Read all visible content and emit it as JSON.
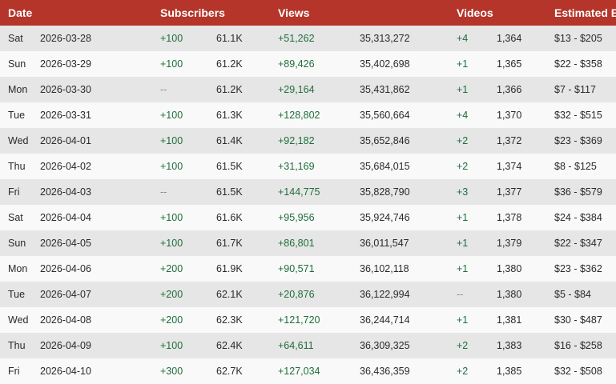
{
  "columns": {
    "date": "Date",
    "subscribers": "Subscribers",
    "views": "Views",
    "videos": "Videos",
    "earnings": "Estimated E"
  },
  "rows": [
    {
      "day": "Sat",
      "date": "2026-03-28",
      "sub_delta": "+100",
      "subs": "61.1K",
      "views_delta": "+51,262",
      "views": "35,313,272",
      "videos_delta": "+4",
      "videos": "1,364",
      "earnings": "$13 - $205"
    },
    {
      "day": "Sun",
      "date": "2026-03-29",
      "sub_delta": "+100",
      "subs": "61.2K",
      "views_delta": "+89,426",
      "views": "35,402,698",
      "videos_delta": "+1",
      "videos": "1,365",
      "earnings": "$22 - $358"
    },
    {
      "day": "Mon",
      "date": "2026-03-30",
      "sub_delta": "--",
      "subs": "61.2K",
      "views_delta": "+29,164",
      "views": "35,431,862",
      "videos_delta": "+1",
      "videos": "1,366",
      "earnings": "$7 - $117"
    },
    {
      "day": "Tue",
      "date": "2026-03-31",
      "sub_delta": "+100",
      "subs": "61.3K",
      "views_delta": "+128,802",
      "views": "35,560,664",
      "videos_delta": "+4",
      "videos": "1,370",
      "earnings": "$32 - $515"
    },
    {
      "day": "Wed",
      "date": "2026-04-01",
      "sub_delta": "+100",
      "subs": "61.4K",
      "views_delta": "+92,182",
      "views": "35,652,846",
      "videos_delta": "+2",
      "videos": "1,372",
      "earnings": "$23 - $369"
    },
    {
      "day": "Thu",
      "date": "2026-04-02",
      "sub_delta": "+100",
      "subs": "61.5K",
      "views_delta": "+31,169",
      "views": "35,684,015",
      "videos_delta": "+2",
      "videos": "1,374",
      "earnings": "$8 - $125"
    },
    {
      "day": "Fri",
      "date": "2026-04-03",
      "sub_delta": "--",
      "subs": "61.5K",
      "views_delta": "+144,775",
      "views": "35,828,790",
      "videos_delta": "+3",
      "videos": "1,377",
      "earnings": "$36 - $579"
    },
    {
      "day": "Sat",
      "date": "2026-04-04",
      "sub_delta": "+100",
      "subs": "61.6K",
      "views_delta": "+95,956",
      "views": "35,924,746",
      "videos_delta": "+1",
      "videos": "1,378",
      "earnings": "$24 - $384"
    },
    {
      "day": "Sun",
      "date": "2026-04-05",
      "sub_delta": "+100",
      "subs": "61.7K",
      "views_delta": "+86,801",
      "views": "36,011,547",
      "videos_delta": "+1",
      "videos": "1,379",
      "earnings": "$22 - $347"
    },
    {
      "day": "Mon",
      "date": "2026-04-06",
      "sub_delta": "+200",
      "subs": "61.9K",
      "views_delta": "+90,571",
      "views": "36,102,118",
      "videos_delta": "+1",
      "videos": "1,380",
      "earnings": "$23 - $362"
    },
    {
      "day": "Tue",
      "date": "2026-04-07",
      "sub_delta": "+200",
      "subs": "62.1K",
      "views_delta": "+20,876",
      "views": "36,122,994",
      "videos_delta": "--",
      "videos": "1,380",
      "earnings": "$5 - $84"
    },
    {
      "day": "Wed",
      "date": "2026-04-08",
      "sub_delta": "+200",
      "subs": "62.3K",
      "views_delta": "+121,720",
      "views": "36,244,714",
      "videos_delta": "+1",
      "videos": "1,381",
      "earnings": "$30 - $487"
    },
    {
      "day": "Thu",
      "date": "2026-04-09",
      "sub_delta": "+100",
      "subs": "62.4K",
      "views_delta": "+64,611",
      "views": "36,309,325",
      "videos_delta": "+2",
      "videos": "1,383",
      "earnings": "$16 - $258"
    },
    {
      "day": "Fri",
      "date": "2026-04-10",
      "sub_delta": "+300",
      "subs": "62.7K",
      "views_delta": "+127,034",
      "views": "36,436,359",
      "videos_delta": "+2",
      "videos": "1,385",
      "earnings": "$32 - $508"
    }
  ],
  "colors": {
    "header_bg": "#b5352b",
    "positive": "#1e6e3c",
    "neutral": "#8a8a8a",
    "row_odd": "#e6e6e6",
    "row_even": "#f9f9f9"
  }
}
